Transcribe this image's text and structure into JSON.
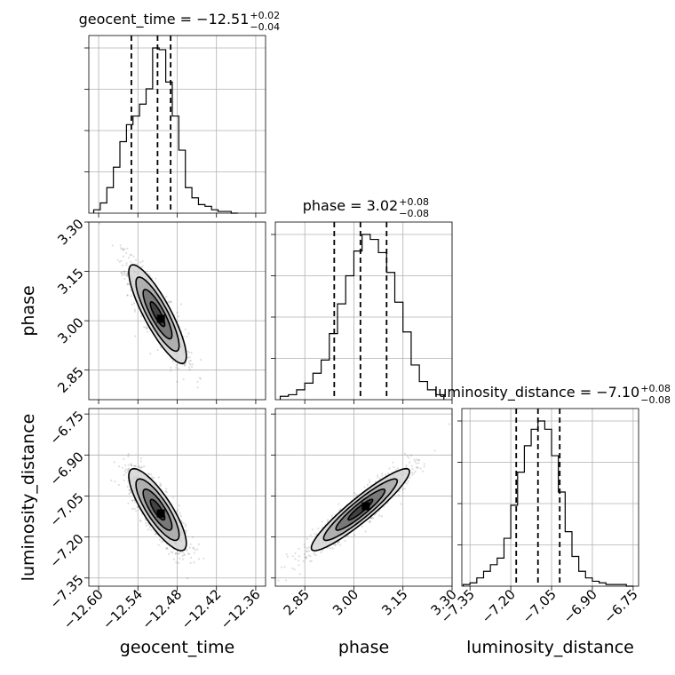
{
  "chart_data": {
    "type": "corner",
    "parameters": [
      "geocent_time",
      "phase",
      "luminosity_distance"
    ],
    "titles": {
      "geocent_time": {
        "name": "geocent_time",
        "median": "−12.51",
        "upper": "+0.02",
        "lower": "−0.04"
      },
      "phase": {
        "name": "phase",
        "median": "3.02",
        "upper": "+0.08",
        "lower": "−0.08"
      },
      "luminosity_distance": {
        "name": "luminosity_distance",
        "median": "−7.10",
        "upper": "+0.08",
        "lower": "−0.08"
      }
    },
    "axes": {
      "geocent_time": {
        "range": [
          -12.615,
          -12.345
        ],
        "ticks": [
          -12.6,
          -12.54,
          -12.48,
          -12.42,
          -12.36
        ],
        "tick_labels": [
          "−12.60",
          "−12.54",
          "−12.48",
          "−12.42",
          "−12.36"
        ]
      },
      "phase": {
        "range": [
          2.76,
          3.3
        ],
        "ticks": [
          2.85,
          3.0,
          3.15,
          3.3
        ],
        "tick_labels": [
          "2.85",
          "3.00",
          "3.15",
          "3.30"
        ]
      },
      "luminosity_distance": {
        "range": [
          -7.38,
          -6.73
        ],
        "ticks": [
          -7.35,
          -7.2,
          -7.05,
          -6.9,
          -6.75
        ],
        "tick_labels": [
          "−7.35",
          "−7.20",
          "−7.05",
          "−6.90",
          "−6.75"
        ]
      }
    },
    "histograms": {
      "geocent_time": {
        "bin_edges": [
          -12.6075,
          -12.5975,
          -12.5875,
          -12.5775,
          -12.5675,
          -12.5575,
          -12.5475,
          -12.5375,
          -12.5275,
          -12.5175,
          -12.5075,
          -12.4975,
          -12.4875,
          -12.4775,
          -12.4675,
          -12.4575,
          -12.4475,
          -12.4375,
          -12.4275,
          -12.4175,
          -12.4075,
          -12.3975,
          -12.3875
        ],
        "counts": [
          2,
          6,
          15,
          27,
          42,
          52,
          57,
          64,
          73,
          97,
          96,
          77,
          57,
          37,
          15,
          9,
          5,
          4,
          2,
          1,
          1,
          0
        ]
      },
      "phase": {
        "bin_edges": [
          2.775,
          2.8,
          2.825,
          2.85,
          2.875,
          2.9,
          2.925,
          2.95,
          2.975,
          3.0,
          3.025,
          3.05,
          3.075,
          3.1,
          3.125,
          3.15,
          3.175,
          3.2,
          3.225,
          3.25,
          3.275
        ],
        "counts": [
          2,
          3,
          6,
          10,
          16,
          24,
          40,
          58,
          75,
          90,
          100,
          97,
          89,
          77,
          59,
          41,
          21,
          11,
          6,
          3
        ]
      },
      "luminosity_distance": {
        "bin_edges": [
          -7.375,
          -7.35,
          -7.325,
          -7.3,
          -7.275,
          -7.25,
          -7.225,
          -7.2,
          -7.175,
          -7.15,
          -7.125,
          -7.1,
          -7.075,
          -7.05,
          -7.025,
          -7.0,
          -6.975,
          -6.95,
          -6.925,
          -6.9,
          -6.875,
          -6.85,
          -6.825,
          -6.8,
          -6.775,
          -6.75
        ],
        "counts": [
          1,
          2,
          5,
          9,
          13,
          17,
          29,
          49,
          69,
          85,
          95,
          100,
          95,
          79,
          57,
          33,
          18,
          9,
          5,
          3,
          2,
          1,
          1,
          1,
          0
        ]
      }
    },
    "quantile_lines": {
      "geocent_time": [
        -12.55,
        -12.51,
        -12.49
      ],
      "phase": [
        2.94,
        3.02,
        3.1
      ],
      "luminosity_distance": [
        -7.18,
        -7.1,
        -7.02
      ]
    },
    "joint": [
      {
        "x": "geocent_time",
        "y": "phase",
        "mean": [
          -12.51,
          3.02
        ],
        "std": [
          0.022,
          0.075
        ],
        "corr": -0.85,
        "contours_1sigma_equiv": [
          0.5,
          1.0,
          1.5,
          2.0
        ]
      },
      {
        "x": "geocent_time",
        "y": "luminosity_distance",
        "mean": [
          -12.51,
          -7.1
        ],
        "std": [
          0.022,
          0.075
        ],
        "corr": -0.82,
        "contours_1sigma_equiv": [
          0.5,
          1.0,
          1.5,
          2.0
        ]
      },
      {
        "x": "phase",
        "y": "luminosity_distance",
        "mean": [
          3.02,
          -7.1
        ],
        "std": [
          0.075,
          0.075
        ],
        "corr": 0.93,
        "contours_1sigma_equiv": [
          0.5,
          1.0,
          1.5,
          2.0
        ]
      }
    ],
    "grid": true
  }
}
